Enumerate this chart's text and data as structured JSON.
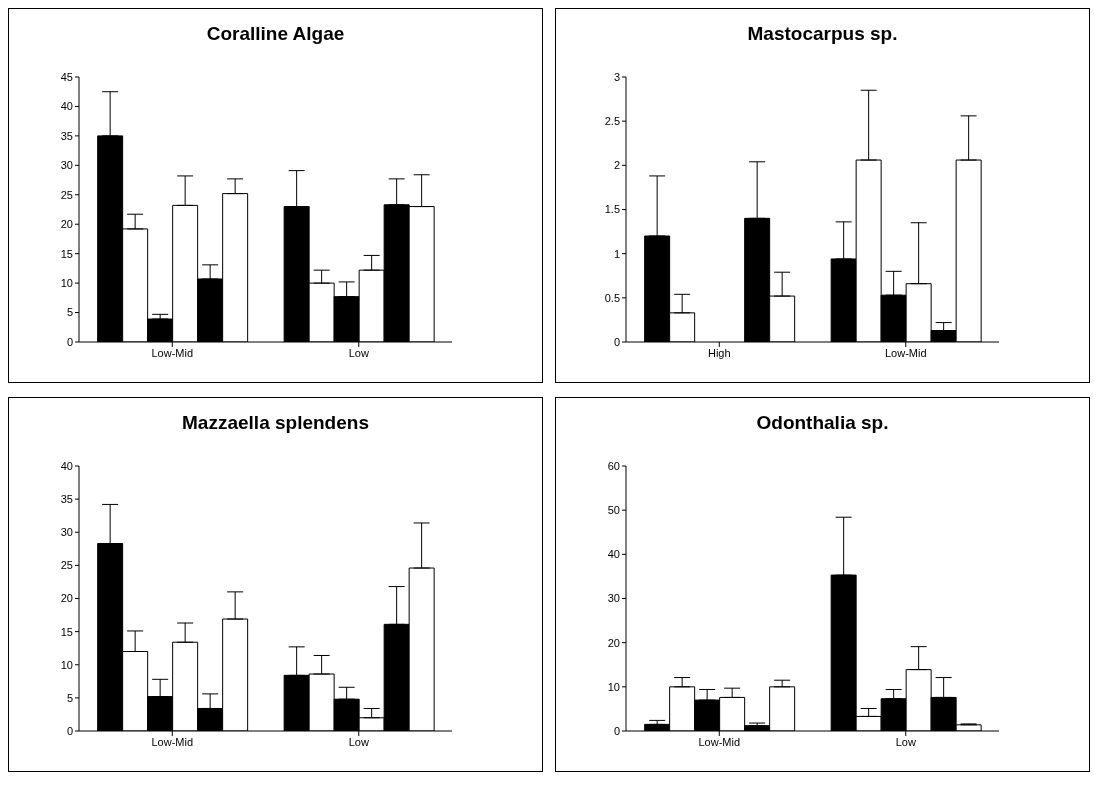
{
  "chart_data": [
    {
      "type": "bar",
      "title": "Coralline Algae",
      "categories": [
        "Low-Mid",
        "Low"
      ],
      "ylim": [
        0,
        45
      ],
      "yticks": [
        0,
        5,
        10,
        15,
        20,
        25,
        30,
        35,
        40,
        45
      ],
      "grid": false,
      "legend": false,
      "series": [
        {
          "color": "#000000",
          "values": [
            35,
            23
          ],
          "errors": [
            [
              35,
              42.5
            ],
            [
              23,
              29.1
            ]
          ]
        },
        {
          "color": "#ffffff",
          "values": [
            19.2,
            10
          ],
          "errors": [
            [
              19.2,
              21.7
            ],
            [
              10,
              12.2
            ]
          ]
        },
        {
          "color": "#000000",
          "values": [
            3.9,
            7.7
          ],
          "errors": [
            [
              3.9,
              4.7
            ],
            [
              7.7,
              10.2
            ]
          ]
        },
        {
          "color": "#ffffff",
          "values": [
            23.2,
            12.2
          ],
          "errors": [
            [
              23.2,
              28.2
            ],
            [
              12.2,
              14.7
            ]
          ]
        },
        {
          "color": "#000000",
          "values": [
            10.7,
            23.3
          ],
          "errors": [
            [
              10.7,
              13.1
            ],
            [
              23.3,
              27.7
            ]
          ]
        },
        {
          "color": "#ffffff",
          "values": [
            25.2,
            23
          ],
          "errors": [
            [
              25.2,
              27.7
            ],
            [
              23,
              28.4
            ]
          ]
        }
      ]
    },
    {
      "type": "bar",
      "title": "Mastocarpus sp.",
      "categories": [
        "High",
        "Low-Mid"
      ],
      "ylim": [
        0,
        3
      ],
      "yticks": [
        0,
        0.5,
        1,
        1.5,
        2,
        2.5,
        3
      ],
      "grid": false,
      "legend": false,
      "series": [
        {
          "color": "#000000",
          "values": [
            1.2,
            0.94
          ],
          "errors": [
            [
              1.2,
              1.88
            ],
            [
              0.94,
              1.36
            ]
          ]
        },
        {
          "color": "#ffffff",
          "values": [
            0.33,
            2.06
          ],
          "errors": [
            [
              0.33,
              0.54
            ],
            [
              2.06,
              2.85
            ]
          ]
        },
        {
          "color": "#000000",
          "values": [
            null,
            0.53
          ],
          "errors": [
            null,
            [
              0.53,
              0.8
            ]
          ]
        },
        {
          "color": "#ffffff",
          "values": [
            null,
            0.66
          ],
          "errors": [
            null,
            [
              0.66,
              1.35
            ]
          ]
        },
        {
          "color": "#000000",
          "values": [
            1.4,
            0.13
          ],
          "errors": [
            [
              1.4,
              2.04
            ],
            [
              0.13,
              0.22
            ]
          ]
        },
        {
          "color": "#ffffff",
          "values": [
            0.52,
            2.06
          ],
          "errors": [
            [
              0.52,
              0.79
            ],
            [
              2.06,
              2.56
            ]
          ]
        }
      ]
    },
    {
      "type": "bar",
      "title": "Mazzaella splendens",
      "categories": [
        "Low-Mid",
        "Low"
      ],
      "ylim": [
        0,
        40
      ],
      "yticks": [
        0,
        5,
        10,
        15,
        20,
        25,
        30,
        35,
        40
      ],
      "grid": false,
      "legend": false,
      "series": [
        {
          "color": "#000000",
          "values": [
            28.3,
            8.4
          ],
          "errors": [
            [
              28.3,
              34.2
            ],
            [
              8.4,
              12.7
            ]
          ]
        },
        {
          "color": "#ffffff",
          "values": [
            12,
            8.6
          ],
          "errors": [
            [
              12,
              15.1
            ],
            [
              8.6,
              11.4
            ]
          ]
        },
        {
          "color": "#000000",
          "values": [
            5.2,
            4.8
          ],
          "errors": [
            [
              5.2,
              7.8
            ],
            [
              4.8,
              6.6
            ]
          ]
        },
        {
          "color": "#ffffff",
          "values": [
            13.4,
            2
          ],
          "errors": [
            [
              13.4,
              16.3
            ],
            [
              2,
              3.4
            ]
          ]
        },
        {
          "color": "#000000",
          "values": [
            3.4,
            16.1
          ],
          "errors": [
            [
              3.4,
              5.6
            ],
            [
              16.1,
              21.8
            ]
          ]
        },
        {
          "color": "#ffffff",
          "values": [
            16.9,
            24.6
          ],
          "errors": [
            [
              16.9,
              21
            ],
            [
              24.6,
              31.4
            ]
          ]
        }
      ]
    },
    {
      "type": "bar",
      "title": "Odonthalia sp.",
      "categories": [
        "Low-Mid",
        "Low"
      ],
      "ylim": [
        0,
        60
      ],
      "yticks": [
        0,
        10,
        20,
        30,
        40,
        50,
        60
      ],
      "grid": false,
      "legend": false,
      "series": [
        {
          "color": "#000000",
          "values": [
            1.5,
            35.3
          ],
          "errors": [
            [
              1.5,
              2.4
            ],
            [
              35.3,
              48.4
            ]
          ]
        },
        {
          "color": "#ffffff",
          "values": [
            10,
            3.3
          ],
          "errors": [
            [
              10,
              12.1
            ],
            [
              3.3,
              5.1
            ]
          ]
        },
        {
          "color": "#000000",
          "values": [
            7,
            7.3
          ],
          "errors": [
            [
              7,
              9.4
            ],
            [
              7.3,
              9.4
            ]
          ]
        },
        {
          "color": "#ffffff",
          "values": [
            7.6,
            13.9
          ],
          "errors": [
            [
              7.6,
              9.7
            ],
            [
              13.9,
              19.1
            ]
          ]
        },
        {
          "color": "#000000",
          "values": [
            1.2,
            7.6
          ],
          "errors": [
            [
              1.2,
              1.8
            ],
            [
              7.6,
              12.1
            ]
          ]
        },
        {
          "color": "#ffffff",
          "values": [
            10,
            1.4
          ],
          "errors": [
            [
              10,
              11.5
            ],
            [
              1.4,
              1.6
            ]
          ]
        }
      ]
    }
  ]
}
